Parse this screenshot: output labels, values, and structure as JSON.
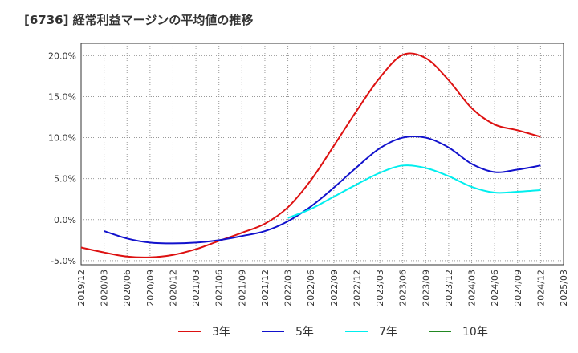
{
  "chart_data": {
    "type": "line",
    "title": "[6736]  経常利益マージンの平均値の推移",
    "xlabel": "",
    "ylabel": "",
    "ylim": [
      -5.5,
      21.5
    ],
    "yticks": [
      {
        "value": -5,
        "label": "-5.0%"
      },
      {
        "value": 0,
        "label": "0.0%"
      },
      {
        "value": 5,
        "label": "5.0%"
      },
      {
        "value": 10,
        "label": "10.0%"
      },
      {
        "value": 15,
        "label": "15.0%"
      },
      {
        "value": 20,
        "label": "20.0%"
      }
    ],
    "xticks": [
      "2019/12",
      "2020/03",
      "2020/06",
      "2020/09",
      "2020/12",
      "2021/03",
      "2021/06",
      "2021/09",
      "2021/12",
      "2022/03",
      "2022/06",
      "2022/09",
      "2022/12",
      "2023/03",
      "2023/06",
      "2023/09",
      "2023/12",
      "2024/03",
      "2024/06",
      "2024/09",
      "2024/12",
      "2025/03"
    ],
    "grid": true,
    "legend_position": "bottom",
    "series": [
      {
        "name": "3年",
        "color": "#dd1111",
        "x": [
          "2019/12",
          "2020/03",
          "2020/06",
          "2020/09",
          "2020/12",
          "2021/03",
          "2021/06",
          "2021/09",
          "2021/12",
          "2022/03",
          "2022/06",
          "2022/09",
          "2022/12",
          "2023/03",
          "2023/06",
          "2023/09",
          "2023/12",
          "2024/03",
          "2024/06",
          "2024/09",
          "2024/12"
        ],
        "values": [
          -3.4,
          -4.0,
          -4.5,
          -4.6,
          -4.3,
          -3.6,
          -2.6,
          -1.6,
          -0.5,
          1.5,
          4.8,
          9.0,
          13.3,
          17.3,
          20.1,
          19.7,
          17.0,
          13.6,
          11.6,
          10.9,
          10.1
        ]
      },
      {
        "name": "5年",
        "color": "#1111cc",
        "x": [
          "2020/03",
          "2020/06",
          "2020/09",
          "2020/12",
          "2021/03",
          "2021/06",
          "2021/09",
          "2021/12",
          "2022/03",
          "2022/06",
          "2022/09",
          "2022/12",
          "2023/03",
          "2023/06",
          "2023/09",
          "2023/12",
          "2024/03",
          "2024/06",
          "2024/09",
          "2024/12"
        ],
        "values": [
          -1.4,
          -2.3,
          -2.8,
          -2.9,
          -2.8,
          -2.5,
          -2.0,
          -1.4,
          -0.2,
          1.6,
          3.9,
          6.4,
          8.7,
          10.0,
          10.0,
          8.8,
          6.8,
          5.8,
          6.1,
          6.6
        ]
      },
      {
        "name": "7年",
        "color": "#00eeee",
        "x": [
          "2022/03",
          "2022/06",
          "2022/09",
          "2022/12",
          "2023/03",
          "2023/06",
          "2023/09",
          "2023/12",
          "2024/03",
          "2024/06",
          "2024/09",
          "2024/12"
        ],
        "values": [
          0.2,
          1.3,
          2.8,
          4.3,
          5.7,
          6.6,
          6.3,
          5.3,
          4.0,
          3.3,
          3.4,
          3.6
        ]
      },
      {
        "name": "10年",
        "color": "#228822",
        "x": [],
        "values": []
      }
    ]
  }
}
